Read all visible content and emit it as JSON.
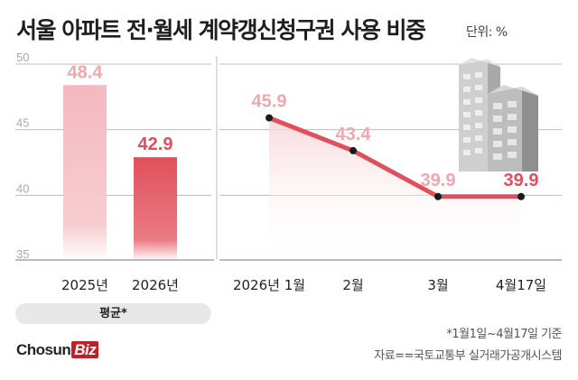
{
  "title": "서울 아파트 전·월세 계약갱신청구권 사용 비중",
  "unit_label": "단위: %",
  "colors": {
    "bar_2025": "#f2b6bd",
    "bar_2026": "#e0505c",
    "line": "#e0505c",
    "label_light": "#f0a7ae",
    "label_dark": "#e0505c",
    "grid": "#bdbdbd"
  },
  "average_label": "평균*",
  "notes": {
    "period": "*1월1일~4월17일 기준",
    "source": "자료==국토교통부 실거래가공개시스템"
  },
  "logo": {
    "main": "Chosun",
    "accent": "Biz"
  },
  "decoration": {
    "icon": "apartment-buildings-icon"
  },
  "chart_data": [
    {
      "type": "bar",
      "categories": [
        "2025년",
        "2026년"
      ],
      "values": [
        48.4,
        42.9
      ],
      "value_labels": [
        "48.4",
        "42.9"
      ],
      "ylim": [
        35,
        50
      ],
      "yticks": [
        35,
        40,
        45,
        50
      ],
      "grid": true
    },
    {
      "type": "line",
      "categories": [
        "2026년 1월",
        "2월",
        "3월",
        "4월17일"
      ],
      "values": [
        45.9,
        43.4,
        39.9,
        39.9
      ],
      "value_labels": [
        "45.9",
        "43.4",
        "39.9",
        "39.9"
      ],
      "ylim": [
        35,
        50
      ],
      "grid": true
    }
  ]
}
